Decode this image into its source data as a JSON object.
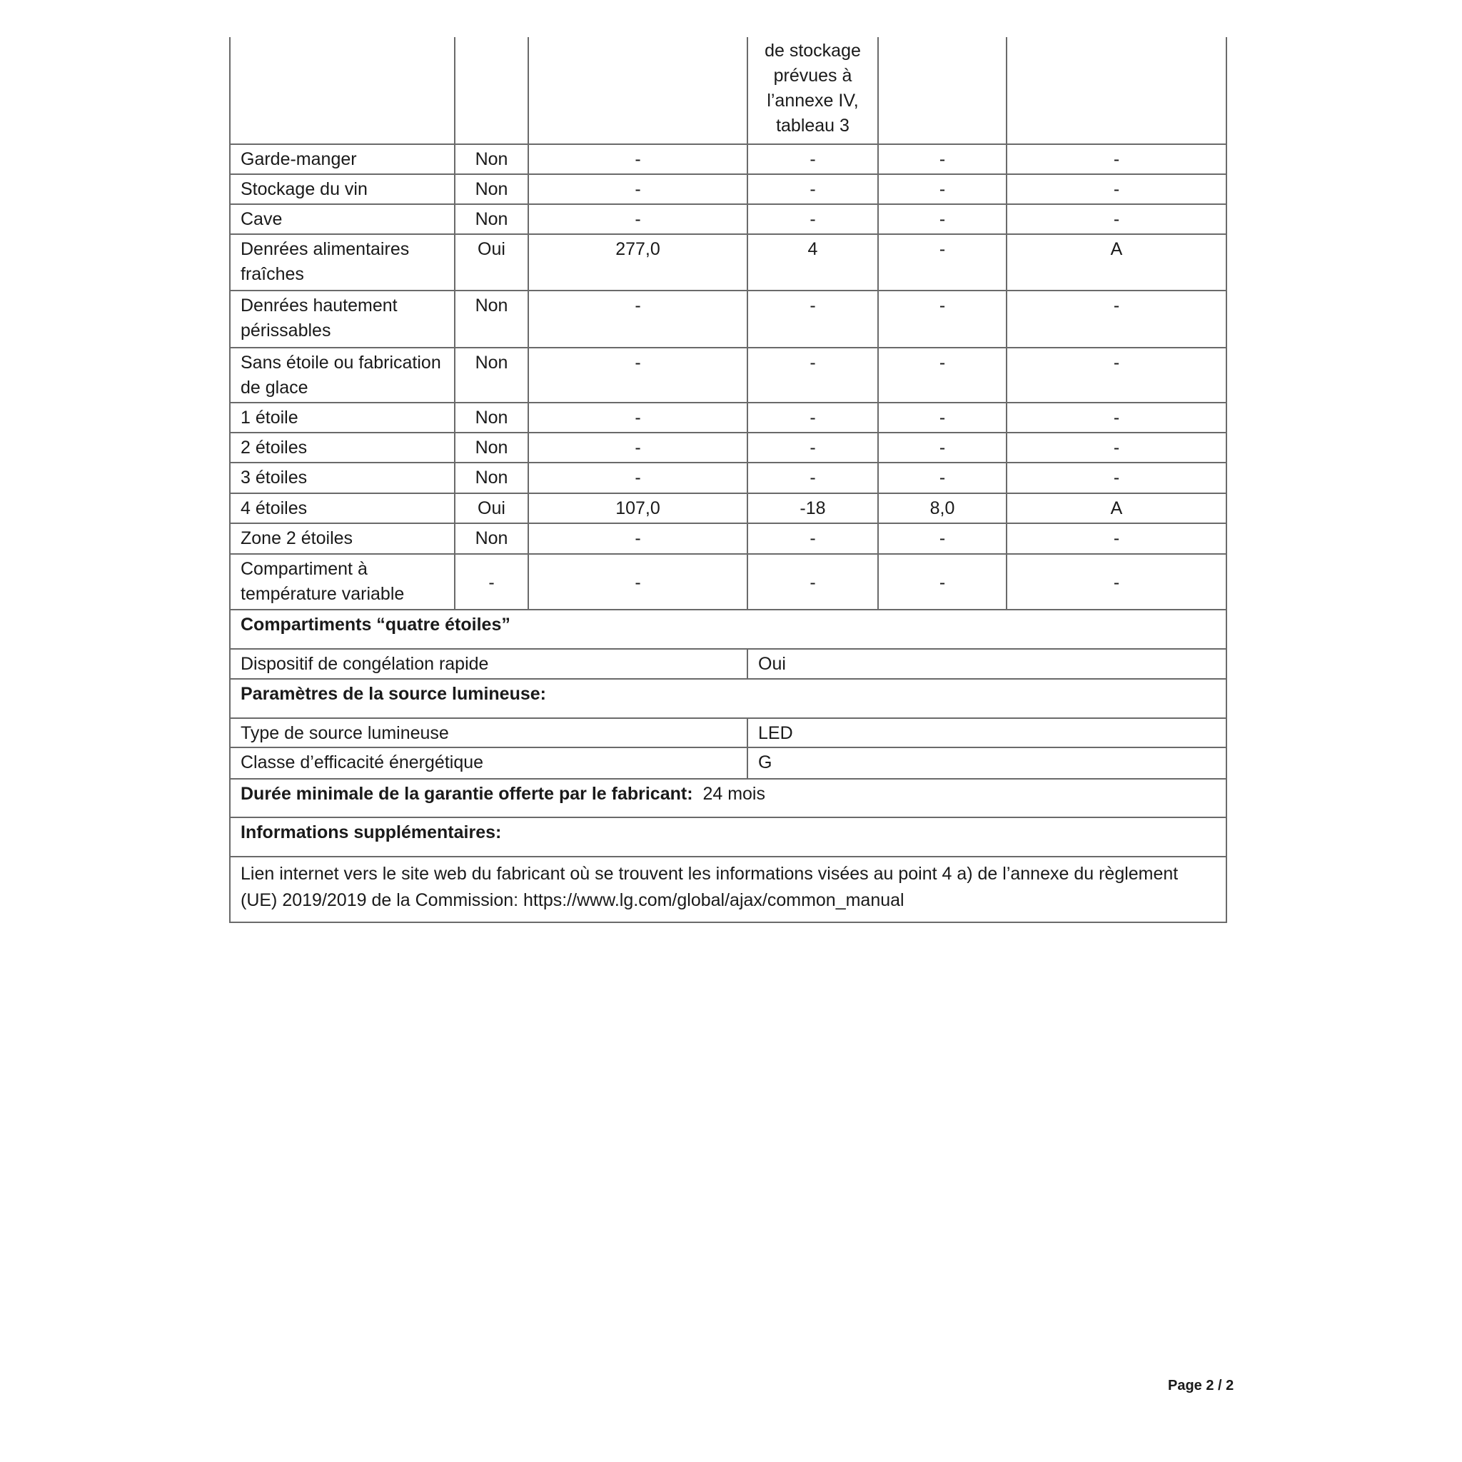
{
  "header_fragment": [
    "de stockage",
    "prévues à",
    "l’annexe IV,",
    "tableau 3"
  ],
  "rows": [
    {
      "name": "Garde-manger",
      "present": "Non",
      "vol": "-",
      "temp": "-",
      "cap": "-",
      "cls": "-"
    },
    {
      "name": "Stockage du vin",
      "present": "Non",
      "vol": "-",
      "temp": "-",
      "cap": "-",
      "cls": "-"
    },
    {
      "name": "Cave",
      "present": "Non",
      "vol": "-",
      "temp": "-",
      "cap": "-",
      "cls": "-"
    },
    {
      "name": "Denrées alimentaires fraîches",
      "present": "Oui",
      "vol": "277,0",
      "temp": "4",
      "cap": "-",
      "cls": "A"
    },
    {
      "name": "Denrées hautement périssables",
      "present": "Non",
      "vol": "-",
      "temp": "-",
      "cap": "-",
      "cls": "-"
    },
    {
      "name": "Sans étoile ou fabrication de glace",
      "present": "Non",
      "vol": "-",
      "temp": "-",
      "cap": "-",
      "cls": "-"
    },
    {
      "name": "1 étoile",
      "present": "Non",
      "vol": "-",
      "temp": "-",
      "cap": "-",
      "cls": "-"
    },
    {
      "name": "2 étoiles",
      "present": "Non",
      "vol": "-",
      "temp": "-",
      "cap": "-",
      "cls": "-"
    },
    {
      "name": "3 étoiles",
      "present": "Non",
      "vol": "-",
      "temp": "-",
      "cap": "-",
      "cls": "-"
    },
    {
      "name": "4 étoiles",
      "present": "Oui",
      "vol": "107,0",
      "temp": "-18",
      "cap": "8,0",
      "cls": "A"
    },
    {
      "name": "Zone 2 étoiles",
      "present": "Non",
      "vol": "-",
      "temp": "-",
      "cap": "-",
      "cls": "-"
    },
    {
      "name": "Compartiment à température variable",
      "present": "-",
      "vol": "-",
      "temp": "-",
      "cap": "-",
      "cls": "-"
    }
  ],
  "four_star_title": "Compartiments “quatre étoiles”",
  "quick_freeze": {
    "label": "Dispositif de congélation rapide",
    "value": "Oui"
  },
  "light_title": "Paramètres de la source lumineuse:",
  "light_type": {
    "label": "Type de source lumineuse",
    "value": "LED"
  },
  "light_class": {
    "label": "Classe d’efficacité énergétique",
    "value": "G"
  },
  "warranty": {
    "label": "Durée minimale de la garantie offerte par le fabricant:",
    "value": "24 mois"
  },
  "extra_title": "Informations supplémentaires:",
  "extra_text": "Lien internet vers le site web du fabricant où se trouvent les informations visées au point 4 a) de l’annexe du règlement (UE) 2019/2019 de la Commission:  https://www.lg.com/global/ajax/common_manual",
  "page_number": "Page 2 / 2"
}
